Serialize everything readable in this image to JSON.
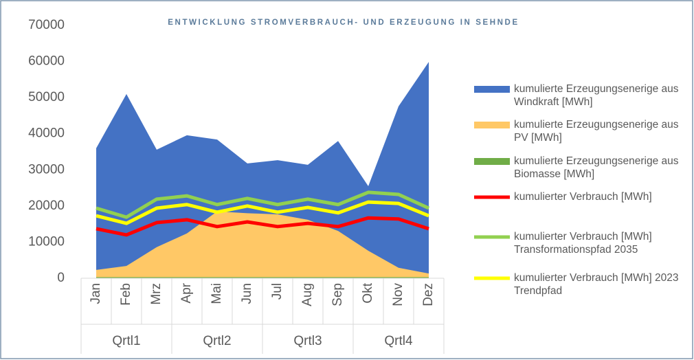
{
  "chart_data": {
    "type": "area",
    "title": "ENTWICKLUNG STROMVERBRAUCH- UND ERZEUGUNG IN SEHNDE",
    "categories": [
      "Jan",
      "Feb",
      "Mrz",
      "Apr",
      "Mai",
      "Jun",
      "Jul",
      "Aug",
      "Sep",
      "Okt",
      "Nov",
      "Dez"
    ],
    "quarters": [
      "Qrtl1",
      "Qrtl2",
      "Qrtl3",
      "Qrtl4"
    ],
    "ylim": [
      0,
      70000
    ],
    "yticks": [
      0,
      10000,
      20000,
      30000,
      40000,
      50000,
      60000,
      70000
    ],
    "series": [
      {
        "name": "kumulierte Erzeugungsenerige aus Windkraft [MWh]",
        "kind": "area",
        "color": "#4472c4",
        "values": [
          36000,
          51000,
          35600,
          39600,
          38400,
          31800,
          32700,
          31400,
          38000,
          25500,
          47600,
          59900
        ]
      },
      {
        "name": "kumulierte Erzeugungsenerige aus PV [MWh]",
        "kind": "area",
        "color": "#ffc866",
        "values": [
          2300,
          3400,
          8600,
          12400,
          18500,
          18000,
          17700,
          16200,
          13100,
          7600,
          2900,
          1300
        ]
      },
      {
        "name": "kumulierte Erzeugungsenerige aus Biomasse [MWh]",
        "kind": "area",
        "color": "#70ad47",
        "values": [
          300,
          300,
          300,
          300,
          300,
          300,
          300,
          300,
          300,
          300,
          300,
          300
        ]
      },
      {
        "name": "kumulierter Verbrauch [MWh]",
        "kind": "line",
        "color": "#ff0000",
        "values": [
          13700,
          12000,
          15400,
          16200,
          14300,
          15600,
          14300,
          15200,
          14300,
          16700,
          16400,
          13700
        ]
      },
      {
        "name": "kumulierter Verbrauch [MWh] Transformationspfad 2035",
        "kind": "line",
        "color": "#92d050",
        "values": [
          19400,
          16900,
          21900,
          22800,
          20400,
          22100,
          20400,
          21900,
          20400,
          23800,
          23200,
          19400
        ]
      },
      {
        "name": "kumulierter Verbrauch [MWh] 2023 Trendpfad",
        "kind": "line",
        "color": "#ffff00",
        "values": [
          17300,
          15200,
          19400,
          20400,
          18300,
          20000,
          18300,
          19600,
          18100,
          21100,
          20700,
          17300
        ]
      }
    ]
  }
}
